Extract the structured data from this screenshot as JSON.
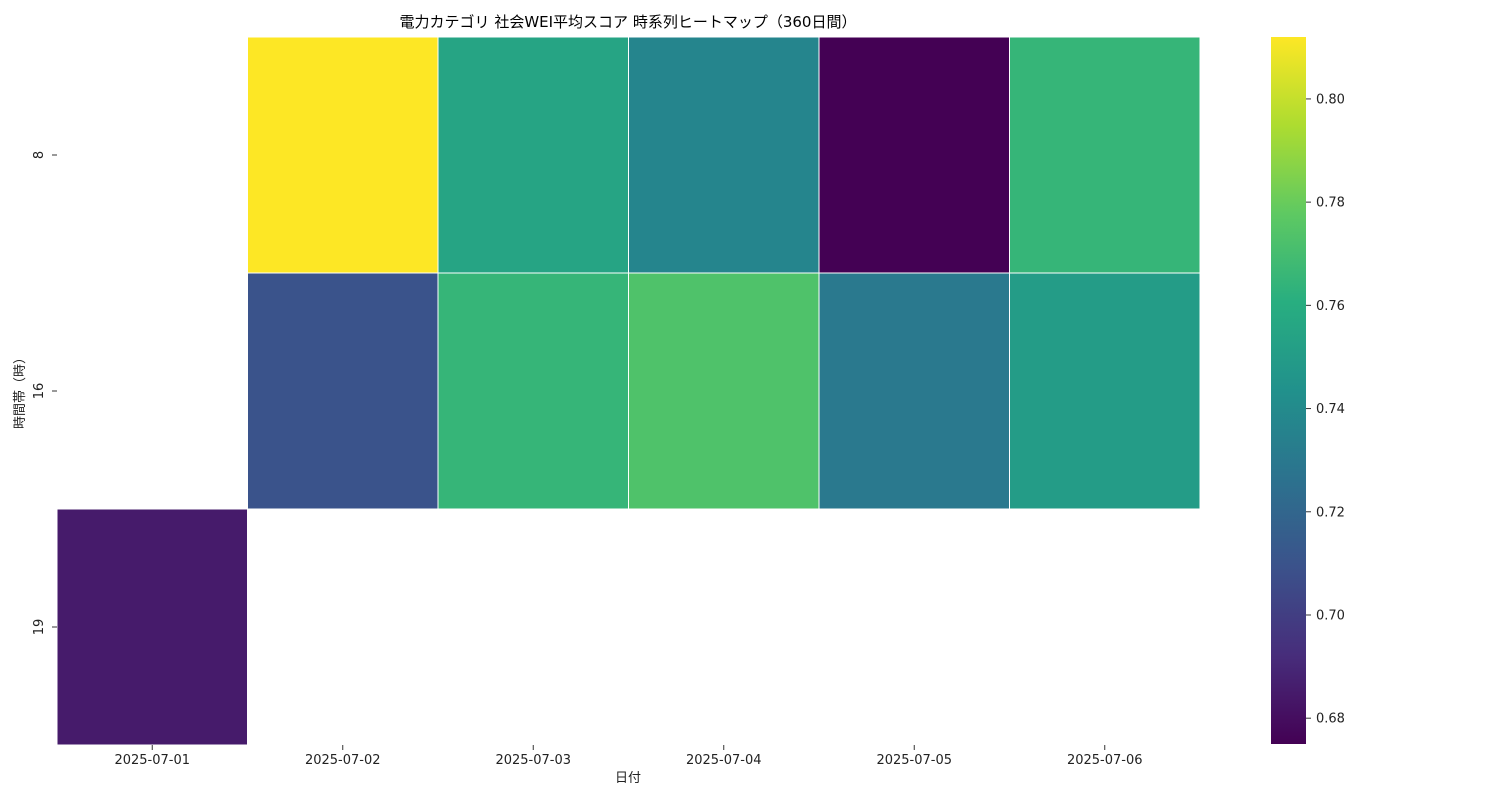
{
  "chart_data": {
    "type": "heatmap",
    "title": "電力カテゴリ 社会WEI平均スコア 時系列ヒートマップ（360日間）",
    "xlabel": "日付",
    "ylabel": "時間帯（時）",
    "x_categories": [
      "2025-07-01",
      "2025-07-02",
      "2025-07-03",
      "2025-07-04",
      "2025-07-05",
      "2025-07-06"
    ],
    "y_categories": [
      "8",
      "16",
      "19"
    ],
    "values": [
      [
        null,
        0.812,
        0.755,
        0.737,
        0.675,
        0.765
      ],
      [
        null,
        0.71,
        0.765,
        0.773,
        0.73,
        0.75
      ],
      [
        0.685,
        null,
        null,
        null,
        null,
        null
      ]
    ],
    "colormap": "viridis",
    "color_range": [
      0.675,
      0.812
    ],
    "colorbar_ticks": [
      0.68,
      0.7,
      0.72,
      0.74,
      0.76,
      0.78,
      0.8
    ],
    "colorbar_tick_labels": [
      "0.68",
      "0.70",
      "0.72",
      "0.74",
      "0.76",
      "0.78",
      "0.80"
    ]
  }
}
